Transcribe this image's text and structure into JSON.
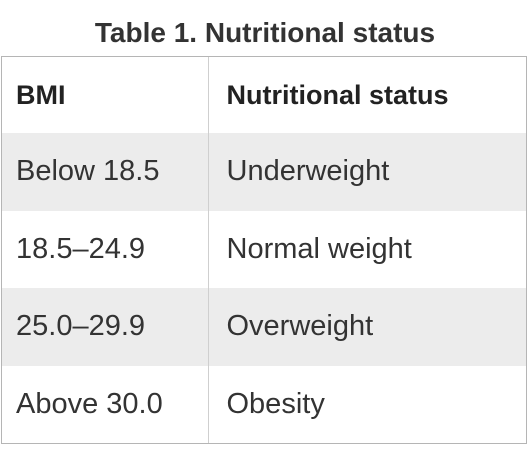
{
  "caption": "Table 1. Nutritional status",
  "table": {
    "headers": [
      "BMI",
      "Nutritional status"
    ],
    "rows": [
      {
        "bmi": "Below 18.5",
        "status": "Underweight"
      },
      {
        "bmi": "18.5–24.9",
        "status": "Normal weight"
      },
      {
        "bmi": "25.0–29.9",
        "status": "Overweight"
      },
      {
        "bmi": "Above 30.0",
        "status": "Obesity"
      }
    ]
  },
  "colors": {
    "row_shade": "#ececec",
    "border": "#b5b5b5",
    "text": "#333333"
  }
}
